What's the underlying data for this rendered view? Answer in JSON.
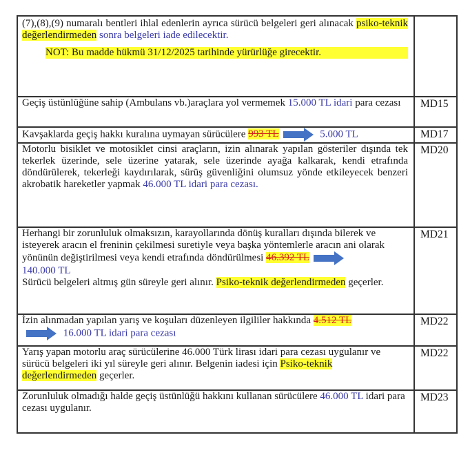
{
  "colors": {
    "text_blue": "#3a3aa8",
    "highlight": "#ffff33",
    "strike": "#d4231c",
    "arrow": "#4472c4"
  },
  "rows": [
    {
      "code": "",
      "segments": [
        {
          "t": "(7),(8),(9) numaralı bentleri ihlal edenlerin ayrıca sürücü belgeleri geri alınacak ",
          "s": "n"
        },
        {
          "t": "psiko-teknik değerlendirmeden",
          "s": "hl"
        },
        {
          "t": " sonra belgeleri iade edilecektir.",
          "s": "blue"
        },
        {
          "t": "NOT: Bu madde hükmü 31/12/2025 tarihinde yürürlüğe girecektir.",
          "s": "note"
        }
      ]
    },
    {
      "code": "MD15",
      "segments": [
        {
          "t": "Geçiş üstünlüğüne sahip (Ambulans vb.)araçlara yol vermemek ",
          "s": "n"
        },
        {
          "t": "15.000 TL idari",
          "s": "blue"
        },
        {
          "t": " para cezası",
          "s": "n"
        }
      ]
    },
    {
      "code": "MD17",
      "segments": [
        {
          "t": "Kavşaklarda geçiş hakkı kuralına uymayan sürücülere ",
          "s": "n"
        },
        {
          "t": "993 TL",
          "s": "strike"
        },
        {
          "t": "arrow-right-icon",
          "s": "arrow"
        },
        {
          "t": " 5.000 TL",
          "s": "blue"
        }
      ]
    },
    {
      "code": "MD20",
      "just": true,
      "segments": [
        {
          "t": "Motorlu bisiklet ve motosiklet cinsi araçların, izin alınarak yapılan gösteriler dışında tek tekerlek üzerinde, sele üzerine yatarak, sele üzerinde ayağa kalkarak, kendi etrafında döndürülerek, tekerleği kaydırılarak, sürüş güvenliğini olumsuz yönde etkileyecek benzeri akrobatik hareketler yapmak ",
          "s": "n"
        },
        {
          "t": "46.000 TL idari para cezası.",
          "s": "blue"
        }
      ]
    },
    {
      "code": "MD21",
      "segments": [
        {
          "t": "Herhangi bir zorunluluk olmaksızın, karayollarında dönüş kuralları dışında bilerek ve isteyerek aracın el freninin çekilmesi suretiyle veya başka yöntemlerle aracın ani olarak yönünün değiştirilmesi veya kendi etrafında döndürülmesi ",
          "s": "n"
        },
        {
          "t": "46.392 TL",
          "s": "strike"
        },
        {
          "t": "arrow-right-icon",
          "s": "arrow"
        },
        {
          "t": "",
          "s": "br"
        },
        {
          "t": "140.000 TL",
          "s": "blue"
        },
        {
          "t": "",
          "s": "br"
        },
        {
          "t": "Sürücü belgeleri altmış gün süreyle geri alınır. ",
          "s": "n"
        },
        {
          "t": "Psiko-teknik değerlendirmeden",
          "s": "hl"
        },
        {
          "t": " geçerler.",
          "s": "n"
        }
      ]
    },
    {
      "code": "MD22",
      "segments": [
        {
          "t": "İzin alınmadan yapılan yarış ve koşuları düzenleyen ilgililer hakkında ",
          "s": "n"
        },
        {
          "t": "4.512 TL",
          "s": "strike"
        },
        {
          "t": "",
          "s": "br"
        },
        {
          "t": "arrow-right-icon",
          "s": "arrow"
        },
        {
          "t": " 16.000 TL idari para cezası",
          "s": "blue"
        }
      ]
    },
    {
      "code": "MD22",
      "segments": [
        {
          "t": "Yarış yapan motorlu araç sürücülerine 46.000 Türk lirası idari para cezası uygulanır ve sürücü belgeleri iki yıl süreyle geri alınır. Belgenin iadesi için ",
          "s": "n"
        },
        {
          "t": "Psiko-teknik değerlendirmeden",
          "s": "hl"
        },
        {
          "t": " geçerler.",
          "s": "n"
        }
      ]
    },
    {
      "code": "MD23",
      "segments": [
        {
          "t": "Zorunluluk olmadığı halde geçiş üstünlüğü hakkını kullanan sürücülere ",
          "s": "n"
        },
        {
          "t": "46.000 TL",
          "s": "blue"
        },
        {
          "t": " idari para cezası uygulanır.",
          "s": "n"
        }
      ]
    }
  ]
}
